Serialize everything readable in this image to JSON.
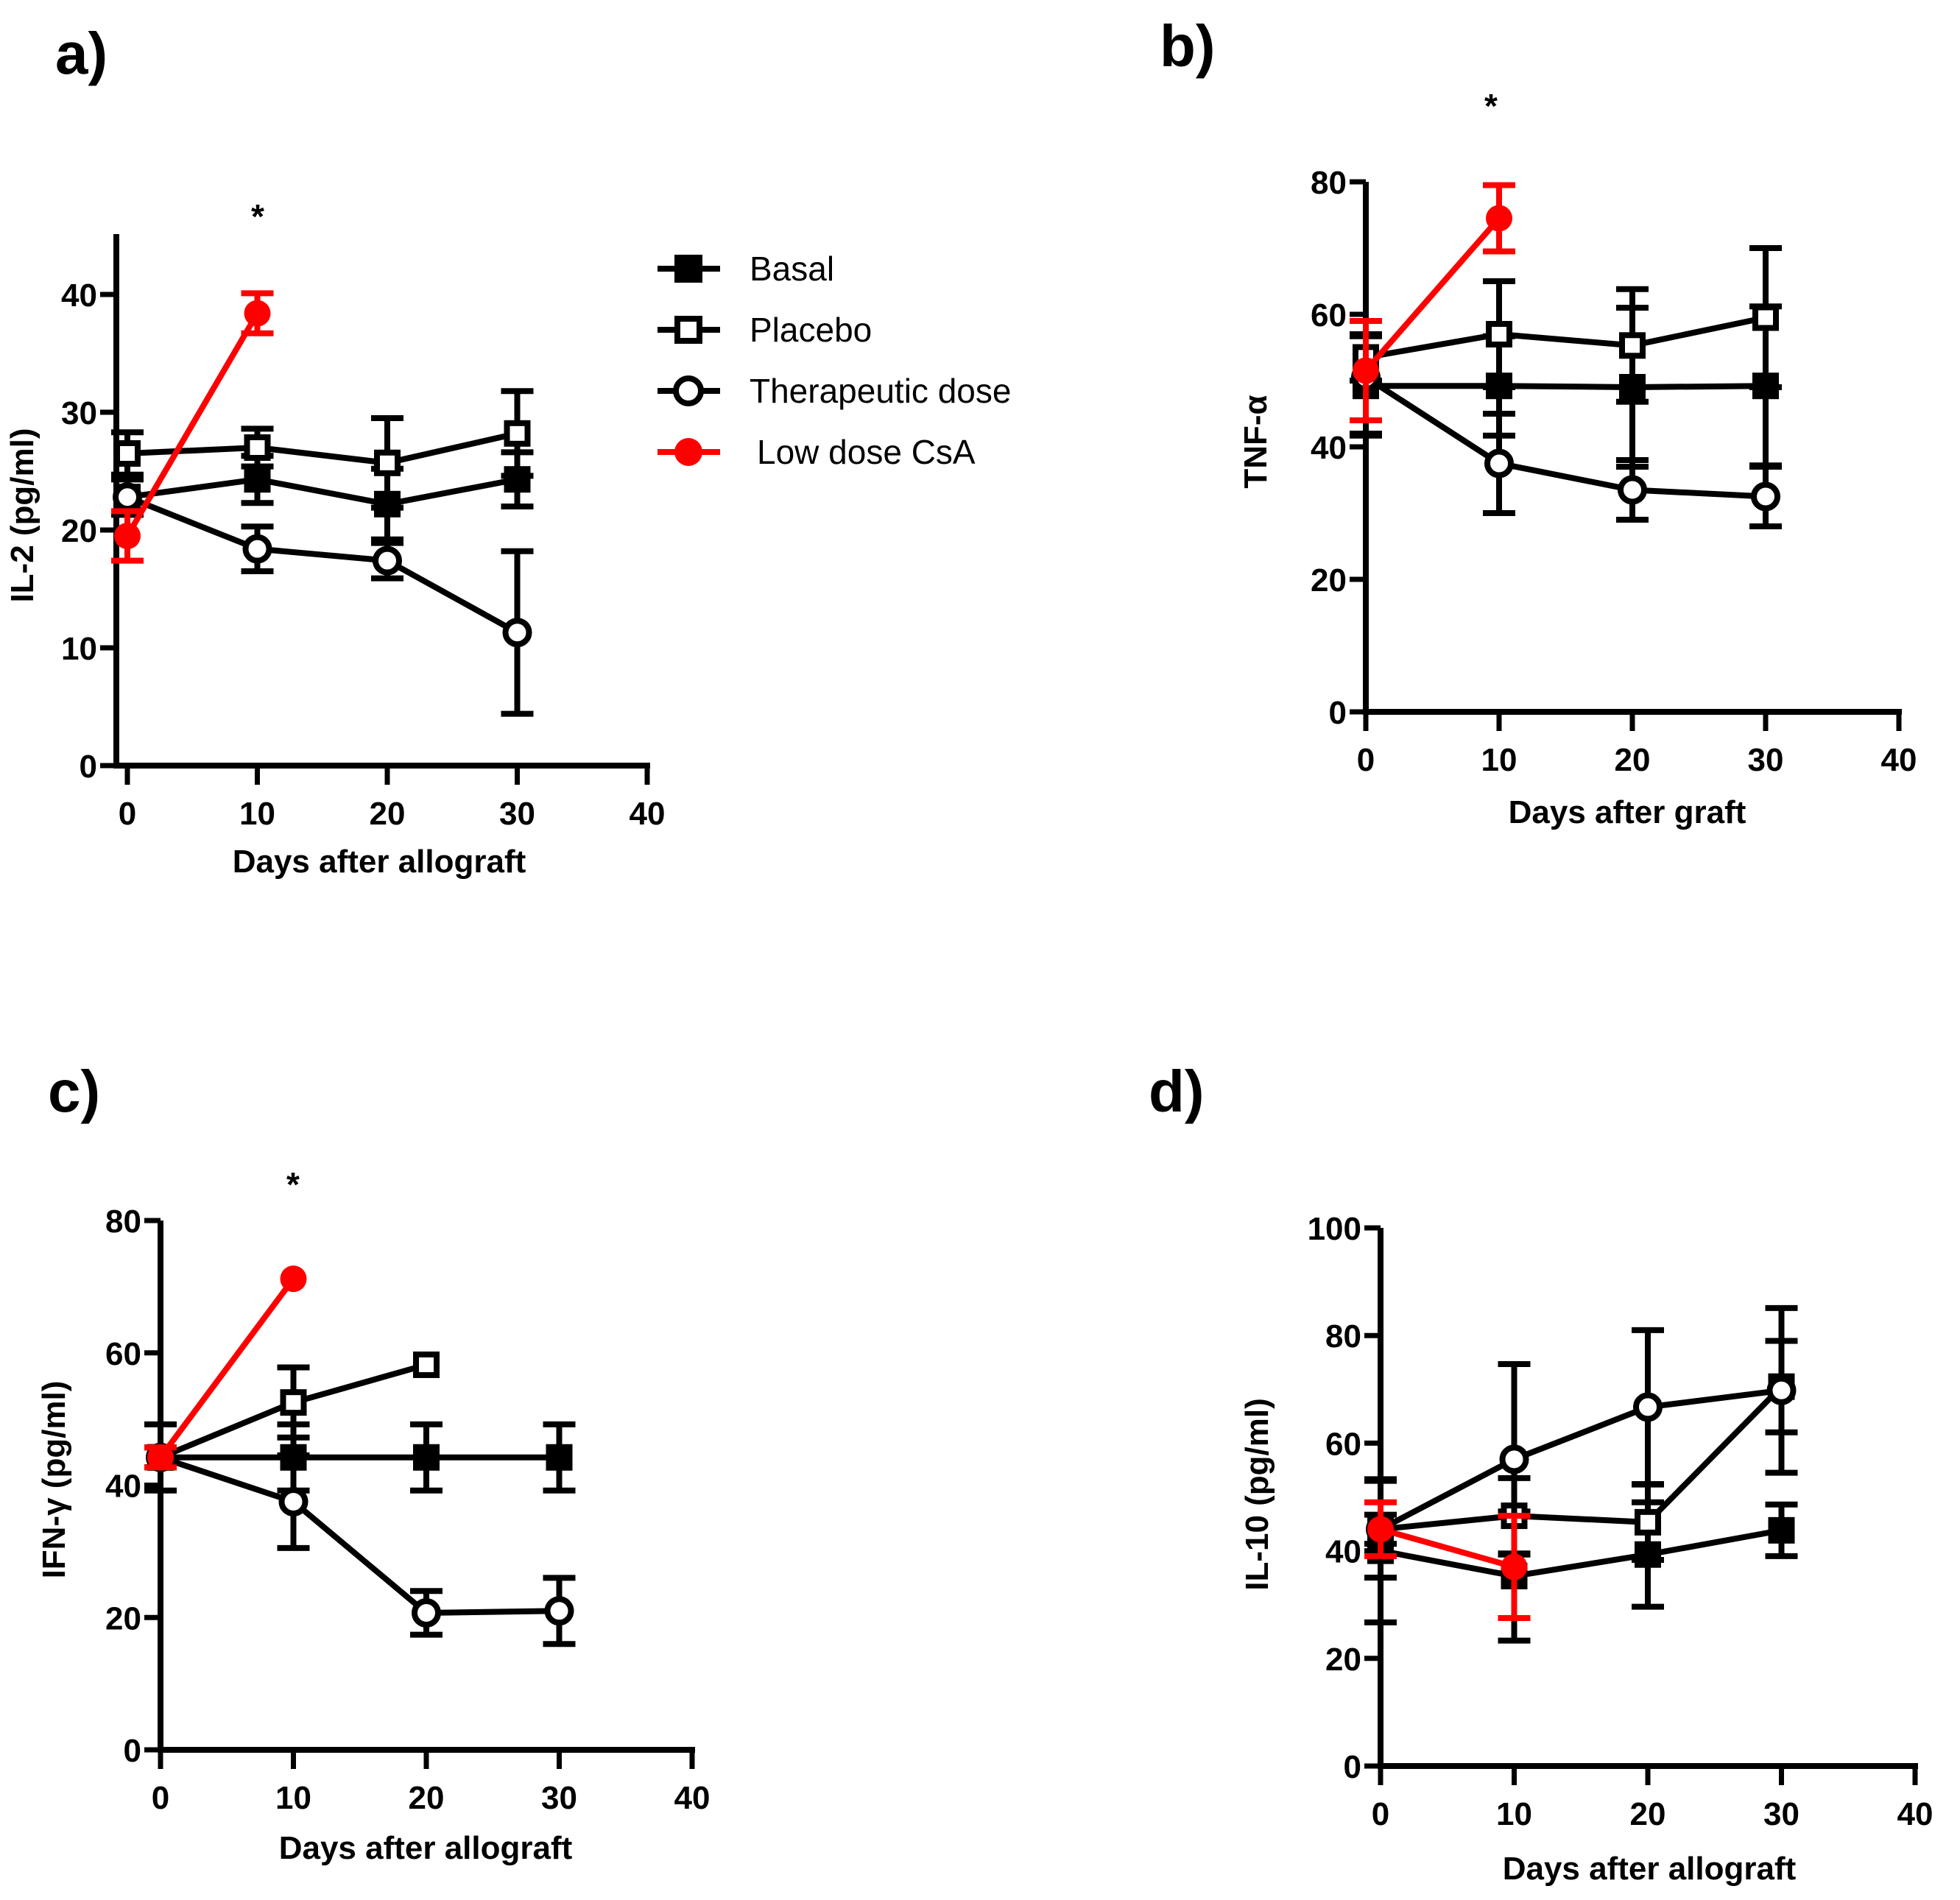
{
  "colors": {
    "black": "#000000",
    "red": "#ff0000"
  },
  "legend": {
    "entries": [
      {
        "label": "Basal",
        "marker": "filled-square",
        "color": "#000000"
      },
      {
        "label": "Placebo",
        "marker": "open-square",
        "color": "#000000"
      },
      {
        "label": "Therapeutic dose",
        "marker": "open-circle",
        "color": "#000000"
      },
      {
        "label": "Low dose CsA",
        "marker": "filled-circle",
        "color": "#ff0000"
      }
    ]
  },
  "chart_data": [
    {
      "id": "a",
      "panel_label": "a)",
      "type": "line",
      "ylabel": "IL-2 (pg/ml)",
      "xlabel": "Days after allograft",
      "xlim": [
        0,
        40
      ],
      "ylim": [
        0,
        45
      ],
      "xticks": [
        0,
        10,
        20,
        30,
        40
      ],
      "yticks": [
        0,
        10,
        20,
        30,
        40
      ],
      "annotation": {
        "text": "*",
        "x": 10
      },
      "series": [
        {
          "name": "Basal",
          "x": [
            0,
            10,
            20,
            30
          ],
          "y": [
            22.8,
            24.3,
            22.2,
            24.3
          ],
          "err": [
            1.5,
            2.0,
            3.0,
            2.3
          ]
        },
        {
          "name": "Placebo",
          "x": [
            0,
            10,
            20,
            30
          ],
          "y": [
            26.5,
            27.0,
            25.7,
            28.2
          ],
          "err": [
            1.8,
            1.6,
            3.8,
            3.6
          ]
        },
        {
          "name": "Therapeutic dose",
          "x": [
            0,
            10,
            20,
            30
          ],
          "y": [
            22.8,
            18.4,
            17.4,
            11.3
          ],
          "err": [
            1.5,
            1.9,
            1.5,
            6.9
          ]
        },
        {
          "name": "Low dose CsA",
          "x": [
            0,
            10
          ],
          "y": [
            19.5,
            38.4
          ],
          "err": [
            2.1,
            1.7
          ]
        }
      ]
    },
    {
      "id": "b",
      "panel_label": "b)",
      "type": "line",
      "ylabel": "TNF-α",
      "xlabel": "Days after graft",
      "xlim": [
        0,
        40
      ],
      "ylim": [
        0,
        80
      ],
      "xticks": [
        0,
        10,
        20,
        30,
        40
      ],
      "yticks": [
        0,
        20,
        40,
        60,
        80
      ],
      "annotation": {
        "text": "*",
        "x": 10
      },
      "series": [
        {
          "name": "Basal",
          "x": [
            0,
            10,
            20,
            30
          ],
          "y": [
            49.2,
            49.2,
            49.0,
            49.2
          ],
          "err": [
            7.5,
            7.5,
            12.0,
            12.0
          ]
        },
        {
          "name": "Placebo",
          "x": [
            0,
            10,
            20,
            30
          ],
          "y": [
            53.5,
            57.0,
            55.3,
            59.5
          ],
          "err": [
            3.5,
            8.0,
            8.5,
            10.5
          ]
        },
        {
          "name": "Therapeutic dose",
          "x": [
            0,
            10,
            20,
            30
          ],
          "y": [
            50.5,
            37.5,
            33.5,
            32.5
          ],
          "err": [
            8.5,
            7.5,
            4.5,
            4.5
          ]
        },
        {
          "name": "Low dose CsA",
          "x": [
            0,
            10
          ],
          "y": [
            51.5,
            74.5
          ],
          "err": [
            7.5,
            5.0
          ]
        }
      ]
    },
    {
      "id": "c",
      "panel_label": "c)",
      "type": "line",
      "ylabel": "IFN-γ (pg/ml)",
      "xlabel": "Days after allograft",
      "xlim": [
        0,
        40
      ],
      "ylim": [
        0,
        80
      ],
      "xticks": [
        0,
        10,
        20,
        30,
        40
      ],
      "yticks": [
        0,
        20,
        40,
        60,
        80
      ],
      "annotation": {
        "text": "*",
        "x": 10
      },
      "series": [
        {
          "name": "Basal",
          "x": [
            0,
            10,
            20,
            30
          ],
          "y": [
            44.2,
            44.2,
            44.2,
            44.2
          ],
          "err": [
            5.0,
            5.0,
            5.0,
            5.0
          ]
        },
        {
          "name": "Placebo",
          "x": [
            0,
            10,
            20
          ],
          "y": [
            44.2,
            52.5,
            58.2
          ],
          "err": [
            1.5,
            5.3,
            0
          ]
        },
        {
          "name": "Therapeutic dose",
          "x": [
            0,
            10,
            20,
            30
          ],
          "y": [
            44.2,
            37.5,
            20.7,
            21.0
          ],
          "err": [
            1.5,
            7.0,
            3.3,
            5.0
          ]
        },
        {
          "name": "Low dose CsA",
          "x": [
            0,
            10
          ],
          "y": [
            44.2,
            71.2
          ],
          "err": [
            1.5,
            0
          ]
        }
      ]
    },
    {
      "id": "d",
      "panel_label": "d)",
      "type": "line",
      "ylabel": "IL-10 (pg/ml)",
      "xlabel": "Days after allograft",
      "xlim": [
        0,
        40
      ],
      "ylim": [
        0,
        100
      ],
      "xticks": [
        0,
        10,
        20,
        30,
        40
      ],
      "yticks": [
        0,
        20,
        40,
        60,
        80,
        100
      ],
      "series": [
        {
          "name": "Basal",
          "x": [
            0,
            10,
            20,
            30
          ],
          "y": [
            40.0,
            35.3,
            39.3,
            43.8
          ],
          "err": [
            13.3,
            12.0,
            9.7,
            4.8
          ]
        },
        {
          "name": "Placebo",
          "x": [
            0,
            10,
            20,
            30
          ],
          "y": [
            44.0,
            46.5,
            45.3,
            70.5
          ],
          "err": [
            2.7,
            7.0,
            7.0,
            8.5
          ]
        },
        {
          "name": "Therapeutic dose",
          "x": [
            0,
            10,
            20,
            30
          ],
          "y": [
            44.0,
            57.0,
            66.7,
            69.8
          ],
          "err": [
            9.0,
            17.7,
            14.3,
            15.3
          ]
        },
        {
          "name": "Low dose CsA",
          "x": [
            0,
            10
          ],
          "y": [
            44.0,
            37.0
          ],
          "err": [
            5.0,
            9.5
          ]
        }
      ]
    }
  ]
}
